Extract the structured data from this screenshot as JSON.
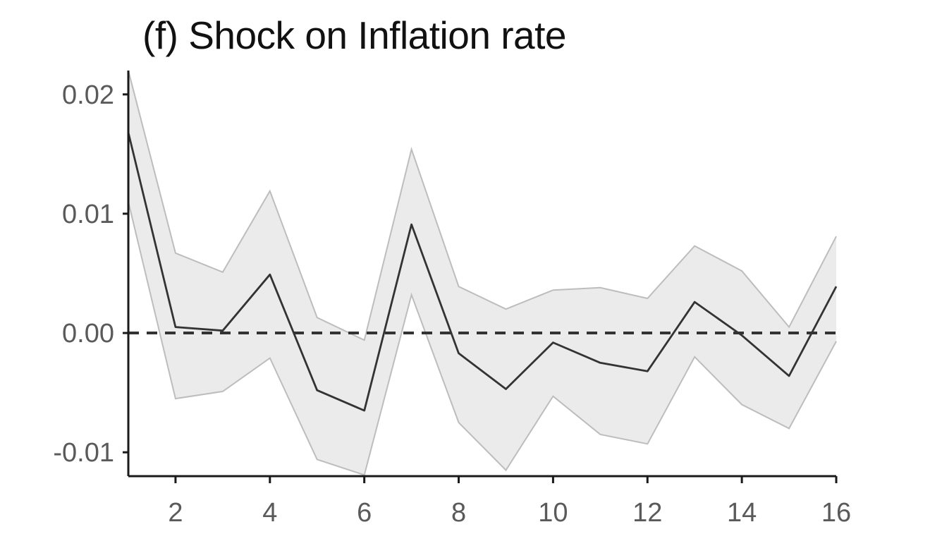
{
  "title": "(f) Shock on Inflation rate",
  "colors": {
    "band_fill": "#ebebeb",
    "band_stroke": "#bdbdbd",
    "line": "#333333",
    "zero_line": "#333333",
    "axis": "#1a1a1a",
    "tick_label": "#5a5a5a"
  },
  "chart_data": {
    "type": "line",
    "title": "(f) Shock on Inflation rate",
    "xlabel": "",
    "ylabel": "",
    "xlim": [
      1,
      16
    ],
    "ylim": [
      -0.012,
      0.022
    ],
    "x_ticks": [
      2,
      4,
      6,
      8,
      10,
      12,
      14,
      16
    ],
    "y_ticks": [
      -0.01,
      0.0,
      0.01,
      0.02
    ],
    "y_tick_labels": [
      "-0.01",
      "0.00",
      "0.01",
      "0.02"
    ],
    "x": [
      1,
      2,
      3,
      4,
      5,
      6,
      7,
      8,
      9,
      10,
      11,
      12,
      13,
      14,
      15,
      16
    ],
    "series": [
      {
        "values": [
          0.0168,
          0.0005,
          0.0002,
          0.0049,
          -0.0048,
          -0.0065,
          0.0091,
          -0.0017,
          -0.0047,
          -0.0008,
          -0.0025,
          -0.0032,
          0.0026,
          -0.0002,
          -0.0036,
          0.0039
        ]
      }
    ],
    "confidence_band": {
      "upper": [
        0.022,
        0.0067,
        0.0051,
        0.0119,
        0.0013,
        -0.0006,
        0.0154,
        0.0039,
        0.002,
        0.0036,
        0.0038,
        0.0029,
        0.0073,
        0.0052,
        0.0005,
        0.0081
      ],
      "lower": [
        0.011,
        -0.0055,
        -0.0049,
        -0.0021,
        -0.0106,
        -0.0119,
        0.0032,
        -0.0075,
        -0.0115,
        -0.0053,
        -0.0085,
        -0.0093,
        -0.002,
        -0.006,
        -0.008,
        -0.0007
      ]
    },
    "reference_line": {
      "y": 0.0,
      "style": "dashed"
    },
    "grid": false,
    "legend": "none"
  }
}
